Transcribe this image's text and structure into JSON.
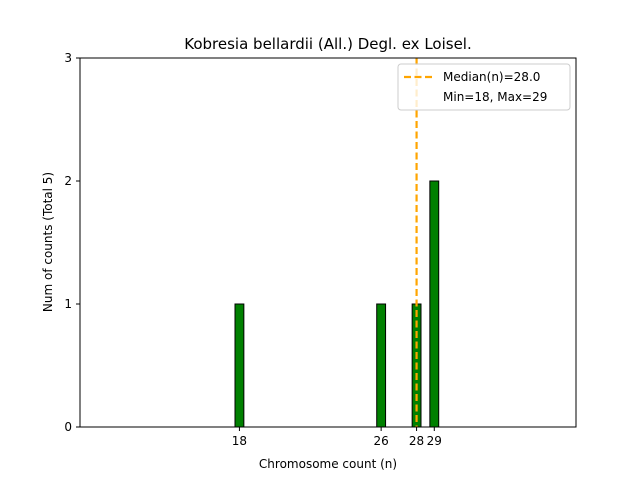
{
  "chart_data": {
    "type": "bar",
    "title": "Kobresia bellardii (All.) Degl. ex Loisel.",
    "xlabel": "Chromosome count (n)",
    "ylabel": "Num of counts     (Total 5)",
    "x_ticks": [
      "18",
      "26",
      "28",
      "29"
    ],
    "y_ticks": [
      "0",
      "1",
      "2",
      "3"
    ],
    "xlim": [
      9,
      37
    ],
    "ylim": [
      0,
      3
    ],
    "bars": [
      {
        "x": 18,
        "value": 1
      },
      {
        "x": 26,
        "value": 1
      },
      {
        "x": 28,
        "value": 1
      },
      {
        "x": 29,
        "value": 2
      }
    ],
    "bar_color": "#008000",
    "bar_edge_color": "#000000",
    "median_line": {
      "x": 28.0,
      "color": "#FFA500",
      "style": "dashed"
    },
    "legend": {
      "placement": "top-right",
      "entries": [
        {
          "label": "Median(n)=28.0",
          "marker": "dashed-line",
          "color": "#FFA500"
        },
        {
          "label": "Min=18, Max=29",
          "marker": "none"
        }
      ]
    },
    "grid": false
  }
}
